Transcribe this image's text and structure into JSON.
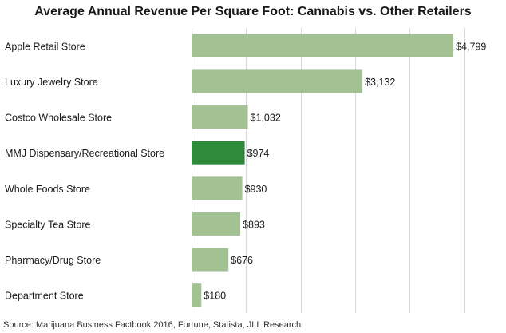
{
  "chart_data": {
    "type": "bar",
    "orientation": "horizontal",
    "title": "Average Annual Revenue Per Square Foot: Cannabis vs. Other Retailers",
    "source": "Source: Marijuana Business Factbook 2016, Fortune, Statista, JLL Research",
    "categories": [
      "Apple Retail Store",
      "Luxury Jewelry Store",
      "Costco Wholesale Store",
      "MMJ Dispensary/Recreational Store",
      "Whole Foods Store",
      "Specialty Tea Store",
      "Pharmacy/Drug Store",
      "Department Store"
    ],
    "values": [
      4799,
      3132,
      1032,
      974,
      930,
      893,
      676,
      180
    ],
    "data_labels": [
      "$4,799",
      "$3,132",
      "$1,032",
      "$974",
      "$930",
      "$893",
      "$676",
      "$180"
    ],
    "highlight_index": 3,
    "xlim": [
      0,
      5500
    ],
    "grid": true,
    "colors": {
      "bar": "#a2c293",
      "highlight": "#2f8a3c",
      "grid": "#d9d9d9",
      "axis": "#bfbfbf",
      "text": "#1a1a1a"
    }
  }
}
